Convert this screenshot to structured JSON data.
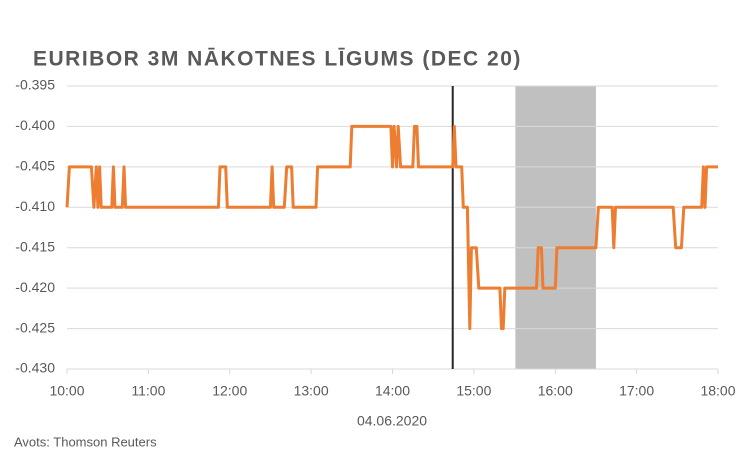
{
  "chart_data": {
    "type": "line",
    "title": "EURIBOR 3M NĀKOTNES LĪGUMS (DEC 20)",
    "x_label": "04.06.2020",
    "source": "Avots: Thomson Reuters",
    "color": "#ed7d31",
    "x": [
      10.0,
      10.03,
      10.3,
      10.33,
      10.36,
      10.38,
      10.4,
      10.42,
      10.55,
      10.57,
      10.59,
      10.68,
      10.7,
      10.72,
      11.86,
      11.88,
      11.95,
      11.97,
      12.5,
      12.52,
      12.54,
      12.67,
      12.7,
      12.76,
      12.78,
      13.06,
      13.08,
      13.48,
      13.5,
      13.98,
      14.0,
      14.02,
      14.05,
      14.07,
      14.1,
      14.25,
      14.27,
      14.3,
      14.32,
      14.74,
      14.76,
      14.78,
      14.85,
      14.87,
      14.92,
      14.95,
      14.97,
      15.03,
      15.06,
      15.32,
      15.34,
      15.36,
      15.38,
      15.77,
      15.79,
      15.83,
      15.85,
      16.0,
      16.02,
      16.5,
      16.53,
      16.7,
      16.72,
      16.74,
      17.45,
      17.48,
      17.55,
      17.58,
      17.8,
      17.82,
      17.84,
      17.86,
      18.0
    ],
    "values": [
      -0.41,
      -0.405,
      -0.405,
      -0.41,
      -0.405,
      -0.41,
      -0.405,
      -0.41,
      -0.41,
      -0.405,
      -0.41,
      -0.41,
      -0.405,
      -0.41,
      -0.41,
      -0.405,
      -0.405,
      -0.41,
      -0.41,
      -0.405,
      -0.41,
      -0.41,
      -0.405,
      -0.405,
      -0.41,
      -0.41,
      -0.405,
      -0.405,
      -0.4,
      -0.4,
      -0.405,
      -0.4,
      -0.405,
      -0.4,
      -0.405,
      -0.405,
      -0.4,
      -0.4,
      -0.405,
      -0.405,
      -0.4,
      -0.405,
      -0.405,
      -0.41,
      -0.41,
      -0.425,
      -0.415,
      -0.415,
      -0.42,
      -0.42,
      -0.425,
      -0.425,
      -0.42,
      -0.42,
      -0.415,
      -0.415,
      -0.42,
      -0.42,
      -0.415,
      -0.415,
      -0.41,
      -0.41,
      -0.415,
      -0.41,
      -0.41,
      -0.415,
      -0.415,
      -0.41,
      -0.41,
      -0.405,
      -0.41,
      -0.405,
      -0.405
    ],
    "xlim": [
      10,
      18
    ],
    "xticks": [
      {
        "value": 10,
        "label": "10:00"
      },
      {
        "value": 11,
        "label": "11:00"
      },
      {
        "value": 12,
        "label": "12:00"
      },
      {
        "value": 13,
        "label": "13:00"
      },
      {
        "value": 14,
        "label": "14:00"
      },
      {
        "value": 15,
        "label": "15:00"
      },
      {
        "value": 16,
        "label": "16:00"
      },
      {
        "value": 17,
        "label": "17:00"
      },
      {
        "value": 18,
        "label": "18:00"
      }
    ],
    "ylim": [
      -0.43,
      -0.395
    ],
    "yticks": [
      -0.395,
      {
        "value": -0.4,
        "label": "-0.400"
      },
      -0.405,
      {
        "value": -0.41,
        "label": "-0.410"
      },
      -0.415,
      {
        "value": -0.42,
        "label": "-0.420"
      },
      -0.425,
      {
        "value": -0.43,
        "label": "-0.430"
      }
    ],
    "grid": true,
    "vline": 14.74,
    "shade": [
      15.51,
      16.5
    ]
  }
}
